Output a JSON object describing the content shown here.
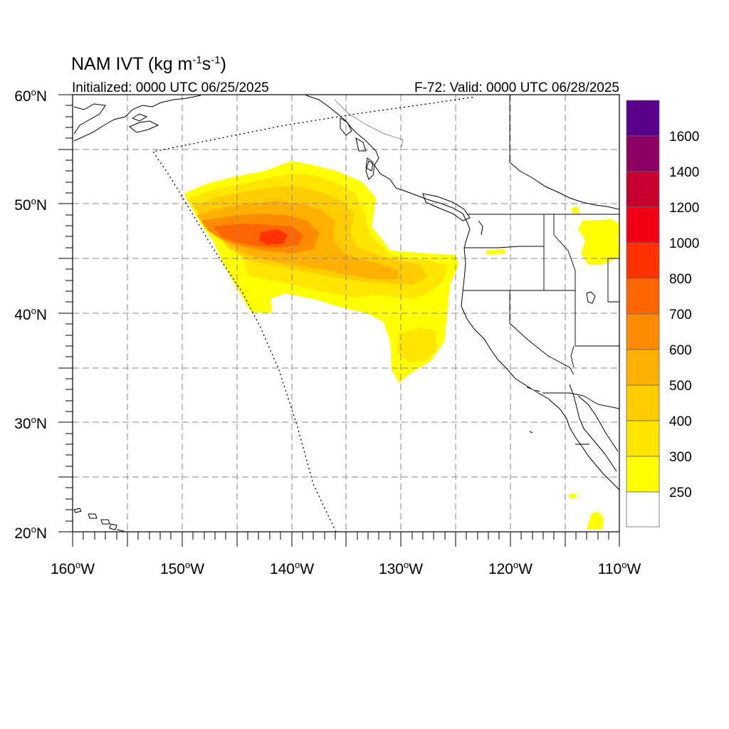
{
  "title": {
    "prefix": "NAM IVT (kg m",
    "exp1": "-1",
    "mid": "s",
    "exp2": "-1",
    "suffix": ")"
  },
  "initialized": "Initialized: 0000 UTC 06/25/2025",
  "valid": "F-72: Valid: 0000 UTC 06/28/2025",
  "map": {
    "lon_range": [
      -160,
      -110
    ],
    "lat_range": [
      20,
      60
    ],
    "grid_step_deg": 5,
    "lat_labels": [
      {
        "deg": 60,
        "hemi": "N"
      },
      {
        "deg": 50,
        "hemi": "N"
      },
      {
        "deg": 40,
        "hemi": "N"
      },
      {
        "deg": 30,
        "hemi": "N"
      },
      {
        "deg": 20,
        "hemi": "N"
      }
    ],
    "lon_labels": [
      {
        "deg": 160,
        "hemi": "W"
      },
      {
        "deg": 150,
        "hemi": "W"
      },
      {
        "deg": 140,
        "hemi": "W"
      },
      {
        "deg": 130,
        "hemi": "W"
      },
      {
        "deg": 120,
        "hemi": "W"
      },
      {
        "deg": 110,
        "hemi": "W"
      }
    ],
    "lat_values": [
      60,
      50,
      40,
      30,
      20
    ],
    "lon_values": [
      -160,
      -150,
      -140,
      -130,
      -120,
      -110
    ],
    "degree_symbol": "o"
  },
  "colorbar": {
    "labels": [
      "1600",
      "1400",
      "1200",
      "1000",
      "800",
      "700",
      "600",
      "500",
      "400",
      "300",
      "250"
    ],
    "colors": [
      "#58008c",
      "#8c0063",
      "#c80032",
      "#f00014",
      "#ff3200",
      "#ff6600",
      "#ff8c00",
      "#ffb000",
      "#ffcc00",
      "#ffe600",
      "#ffff00",
      "#ffffff"
    ]
  }
}
